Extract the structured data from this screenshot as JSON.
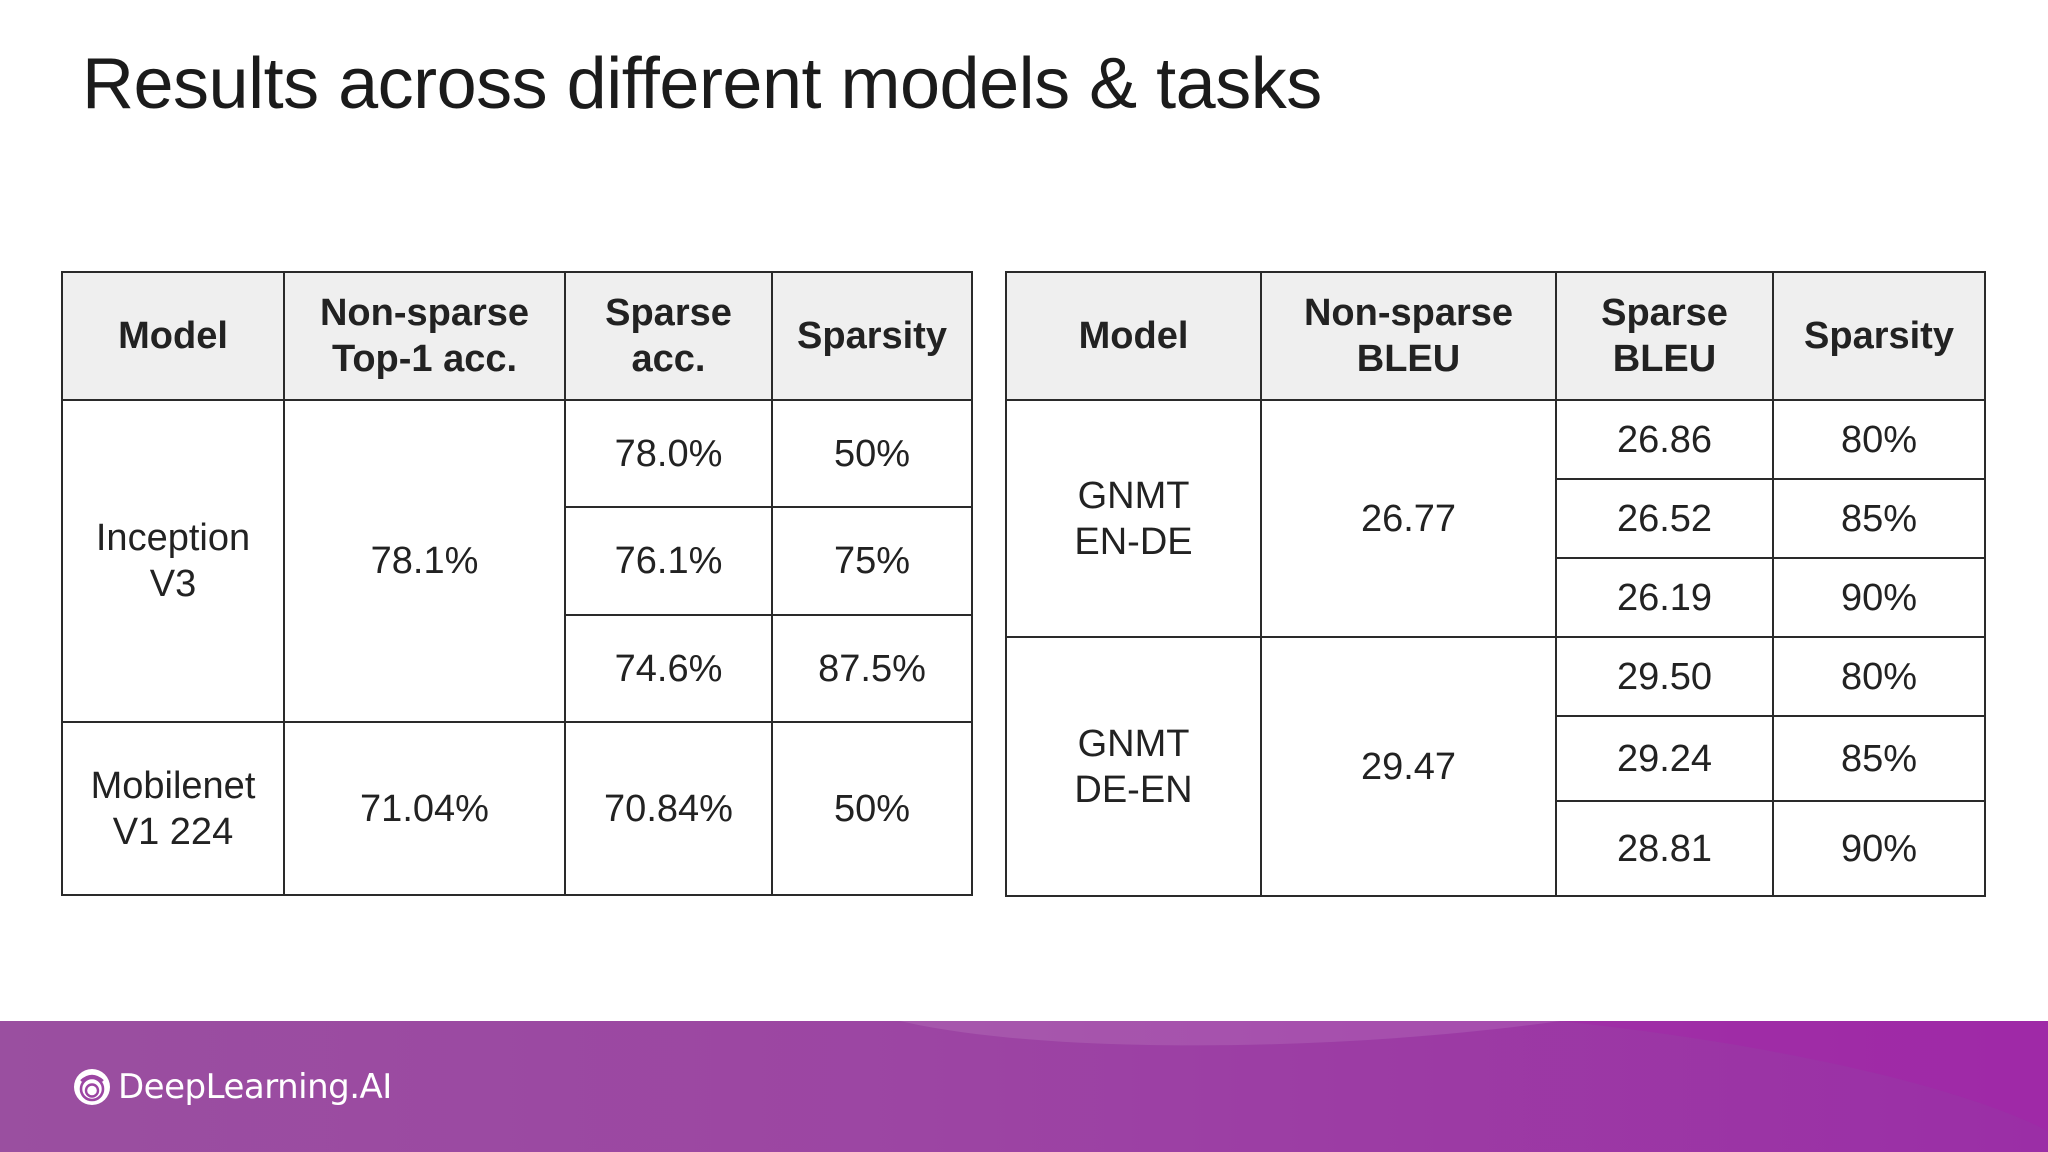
{
  "title": "Results across different models & tasks",
  "image_classification_table": {
    "headers": [
      [
        "Model"
      ],
      [
        "Non-sparse",
        "Top-1 acc."
      ],
      [
        "Sparse",
        "acc."
      ],
      [
        "Sparsity"
      ]
    ],
    "rows": [
      {
        "model": [
          "Inception",
          "V3"
        ],
        "non_sparse": "78.1%",
        "results": [
          {
            "sparse": "78.0%",
            "sparsity": "50%"
          },
          {
            "sparse": "76.1%",
            "sparsity": "75%"
          },
          {
            "sparse": "74.6%",
            "sparsity": "87.5%"
          }
        ]
      },
      {
        "model": [
          "Mobilenet",
          "V1 224"
        ],
        "non_sparse": "71.04%",
        "results": [
          {
            "sparse": "70.84%",
            "sparsity": "50%"
          }
        ]
      }
    ]
  },
  "translation_table": {
    "headers": [
      [
        "Model"
      ],
      [
        "Non-sparse",
        "BLEU"
      ],
      [
        "Sparse",
        "BLEU"
      ],
      [
        "Sparsity"
      ]
    ],
    "rows": [
      {
        "model": [
          "GNMT",
          "EN-DE"
        ],
        "non_sparse": "26.77",
        "results": [
          {
            "sparse": "26.86",
            "sparsity": "80%"
          },
          {
            "sparse": "26.52",
            "sparsity": "85%"
          },
          {
            "sparse": "26.19",
            "sparsity": "90%"
          }
        ]
      },
      {
        "model": [
          "GNMT",
          "DE-EN"
        ],
        "non_sparse": "29.47",
        "results": [
          {
            "sparse": "29.50",
            "sparsity": "80%"
          },
          {
            "sparse": "29.24",
            "sparsity": "85%"
          },
          {
            "sparse": "28.81",
            "sparsity": "90%"
          }
        ]
      }
    ]
  },
  "footer": {
    "brand": "DeepLearning.AI",
    "brand_icon": "deeplearning-ai-logo-icon",
    "colors": {
      "band_start": "#9a4fa0",
      "band_end": "#9b2ea6"
    }
  }
}
